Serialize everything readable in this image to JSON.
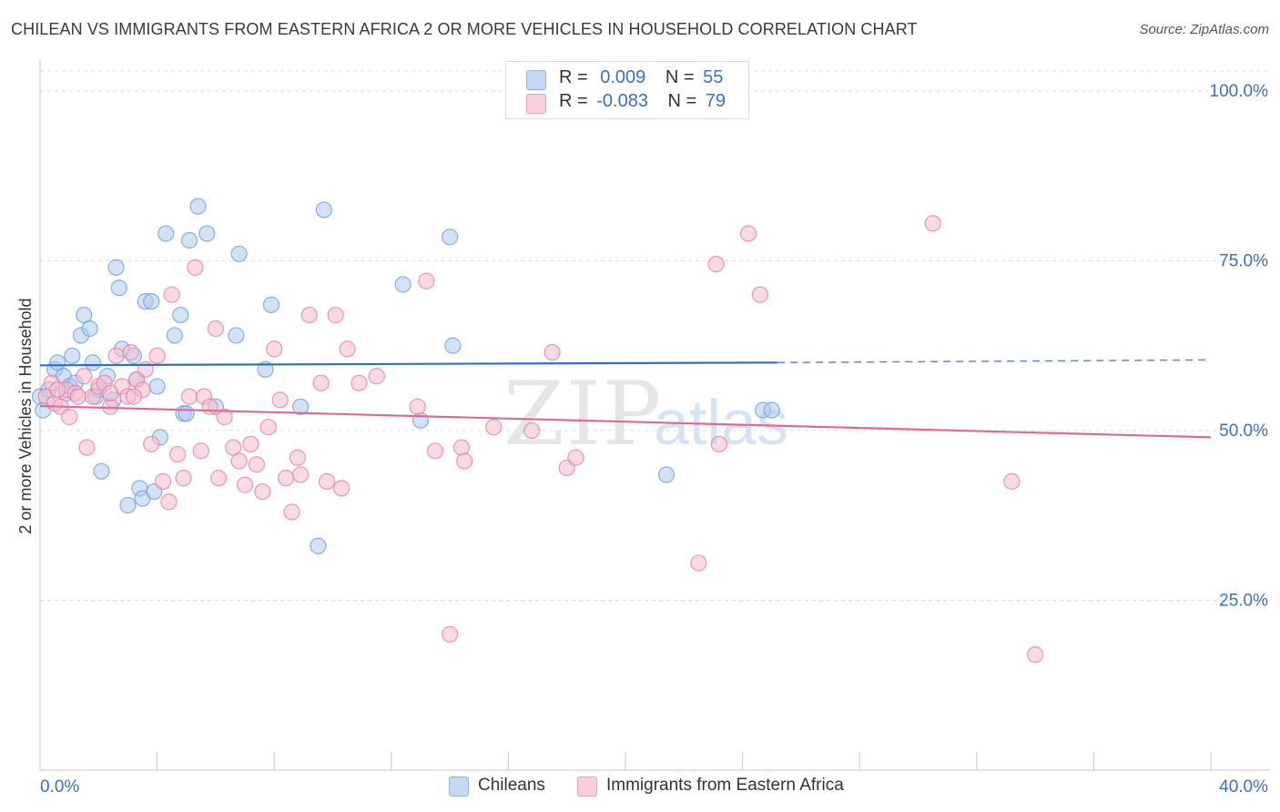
{
  "title": "CHILEAN VS IMMIGRANTS FROM EASTERN AFRICA 2 OR MORE VEHICLES IN HOUSEHOLD CORRELATION CHART",
  "source": "Source: ZipAtlas.com",
  "watermark": {
    "zip": "ZIP",
    "atlas": "atlas"
  },
  "legend": {
    "rows": [
      {
        "r_label": "R =",
        "r_value": "0.009",
        "n_label": "N =",
        "n_value": "55",
        "color": "#aecbf0"
      },
      {
        "r_label": "R =",
        "r_value": "-0.083",
        "n_label": "N =",
        "n_value": "79",
        "color": "#f7bccd"
      }
    ]
  },
  "bottom_legend": [
    {
      "label": "Chileans",
      "color": "#aecbf0"
    },
    {
      "label": "Immigrants from Eastern Africa",
      "color": "#f7bccd"
    }
  ],
  "chart_data": {
    "type": "scatter",
    "title": "CHILEAN VS IMMIGRANTS FROM EASTERN AFRICA 2 OR MORE VEHICLES IN HOUSEHOLD CORRELATION CHART",
    "xlabel": "",
    "ylabel": "2 or more Vehicles in Household",
    "xlim": [
      0,
      40
    ],
    "ylim": [
      0,
      104
    ],
    "x_ticks": [
      "0.0%",
      "40.0%"
    ],
    "y_ticks": [
      {
        "value": 100,
        "label": "100.0%"
      },
      {
        "value": 75,
        "label": "75.0%"
      },
      {
        "value": 50,
        "label": "50.0%"
      },
      {
        "value": 25,
        "label": "25.0%"
      }
    ],
    "grid": true,
    "legend_position": "top-center",
    "series": [
      {
        "name": "Chileans",
        "color": "#6b9fe0",
        "fill": "#aecbf0",
        "trend": {
          "x0": 0,
          "y0": 59.6,
          "x1": 25.2,
          "y1": 60.0,
          "dashed_to_x": 40,
          "dashed_to_y": 60.4,
          "color": "#2f6fc9"
        },
        "points": [
          [
            0.0,
            55.0
          ],
          [
            0.3,
            56.0
          ],
          [
            0.5,
            59.0
          ],
          [
            0.6,
            60.0
          ],
          [
            0.8,
            58.0
          ],
          [
            0.9,
            55.5
          ],
          [
            1.0,
            56.5
          ],
          [
            1.1,
            61.0
          ],
          [
            1.2,
            57.0
          ],
          [
            1.4,
            64.0
          ],
          [
            1.5,
            67.0
          ],
          [
            1.7,
            65.0
          ],
          [
            1.8,
            60.0
          ],
          [
            1.9,
            55.0
          ],
          [
            2.0,
            56.0
          ],
          [
            2.1,
            44.0
          ],
          [
            2.3,
            58.0
          ],
          [
            2.5,
            54.5
          ],
          [
            2.6,
            74.0
          ],
          [
            2.7,
            71.0
          ],
          [
            2.8,
            62.0
          ],
          [
            3.0,
            39.0
          ],
          [
            3.2,
            61.0
          ],
          [
            3.3,
            57.5
          ],
          [
            3.4,
            41.5
          ],
          [
            3.5,
            40.0
          ],
          [
            3.6,
            69.0
          ],
          [
            3.8,
            69.0
          ],
          [
            3.9,
            41.0
          ],
          [
            4.0,
            56.5
          ],
          [
            4.1,
            49.0
          ],
          [
            4.3,
            79.0
          ],
          [
            4.6,
            64.0
          ],
          [
            4.8,
            67.0
          ],
          [
            4.9,
            52.5
          ],
          [
            5.0,
            52.5
          ],
          [
            5.1,
            78.0
          ],
          [
            5.4,
            83.0
          ],
          [
            5.7,
            79.0
          ],
          [
            6.0,
            53.5
          ],
          [
            6.7,
            64.0
          ],
          [
            6.8,
            76.0
          ],
          [
            7.7,
            59.0
          ],
          [
            7.9,
            68.5
          ],
          [
            8.9,
            53.5
          ],
          [
            9.5,
            33.0
          ],
          [
            9.7,
            82.5
          ],
          [
            12.4,
            71.5
          ],
          [
            13.0,
            51.5
          ],
          [
            14.0,
            78.5
          ],
          [
            14.1,
            62.5
          ],
          [
            21.4,
            43.5
          ],
          [
            24.7,
            53.0
          ],
          [
            25.0,
            53.0
          ],
          [
            0.1,
            53.0
          ]
        ]
      },
      {
        "name": "Immigrants from Eastern Africa",
        "color": "#e87ea0",
        "fill": "#f7bccd",
        "trend": {
          "x0": 0,
          "y0": 53.6,
          "x1": 40,
          "y1": 49.0,
          "color": "#e06a93"
        },
        "points": [
          [
            0.2,
            55.0
          ],
          [
            0.4,
            57.0
          ],
          [
            0.5,
            54.0
          ],
          [
            0.7,
            53.5
          ],
          [
            0.9,
            56.0
          ],
          [
            1.0,
            52.0
          ],
          [
            1.2,
            55.5
          ],
          [
            1.5,
            58.0
          ],
          [
            1.6,
            47.5
          ],
          [
            1.8,
            55.0
          ],
          [
            2.0,
            56.5
          ],
          [
            2.2,
            57.0
          ],
          [
            2.4,
            53.5
          ],
          [
            2.6,
            61.0
          ],
          [
            2.8,
            56.5
          ],
          [
            3.0,
            55.0
          ],
          [
            3.1,
            61.5
          ],
          [
            3.3,
            57.5
          ],
          [
            3.5,
            56.0
          ],
          [
            3.6,
            59.0
          ],
          [
            3.8,
            48.0
          ],
          [
            4.0,
            61.0
          ],
          [
            4.2,
            42.5
          ],
          [
            4.4,
            39.5
          ],
          [
            4.5,
            70.0
          ],
          [
            4.7,
            46.5
          ],
          [
            4.9,
            43.0
          ],
          [
            5.1,
            55.0
          ],
          [
            5.3,
            74.0
          ],
          [
            5.5,
            47.0
          ],
          [
            5.6,
            55.0
          ],
          [
            5.8,
            53.5
          ],
          [
            6.0,
            65.0
          ],
          [
            6.1,
            43.0
          ],
          [
            6.3,
            52.0
          ],
          [
            6.6,
            47.5
          ],
          [
            6.8,
            45.5
          ],
          [
            7.0,
            42.0
          ],
          [
            7.2,
            48.0
          ],
          [
            7.4,
            45.0
          ],
          [
            7.6,
            41.0
          ],
          [
            7.8,
            50.5
          ],
          [
            8.0,
            62.0
          ],
          [
            8.2,
            54.5
          ],
          [
            8.4,
            43.0
          ],
          [
            8.6,
            38.0
          ],
          [
            8.8,
            46.0
          ],
          [
            8.9,
            43.5
          ],
          [
            9.2,
            67.0
          ],
          [
            9.6,
            57.0
          ],
          [
            9.8,
            42.5
          ],
          [
            10.1,
            67.0
          ],
          [
            10.3,
            41.5
          ],
          [
            10.5,
            62.0
          ],
          [
            10.9,
            57.0
          ],
          [
            11.5,
            58.0
          ],
          [
            12.9,
            53.5
          ],
          [
            13.2,
            72.0
          ],
          [
            13.5,
            47.0
          ],
          [
            14.0,
            20.0
          ],
          [
            14.4,
            47.5
          ],
          [
            14.5,
            45.5
          ],
          [
            15.5,
            50.5
          ],
          [
            16.8,
            50.0
          ],
          [
            17.5,
            61.5
          ],
          [
            18.0,
            44.5
          ],
          [
            18.3,
            46.0
          ],
          [
            22.5,
            30.5
          ],
          [
            23.1,
            74.5
          ],
          [
            23.2,
            48.0
          ],
          [
            24.2,
            79.0
          ],
          [
            24.6,
            70.0
          ],
          [
            30.5,
            80.5
          ],
          [
            33.2,
            42.5
          ],
          [
            34.0,
            17.0
          ],
          [
            1.3,
            55.0
          ],
          [
            2.4,
            55.5
          ],
          [
            0.6,
            56.0
          ],
          [
            3.2,
            55.0
          ]
        ]
      }
    ]
  }
}
